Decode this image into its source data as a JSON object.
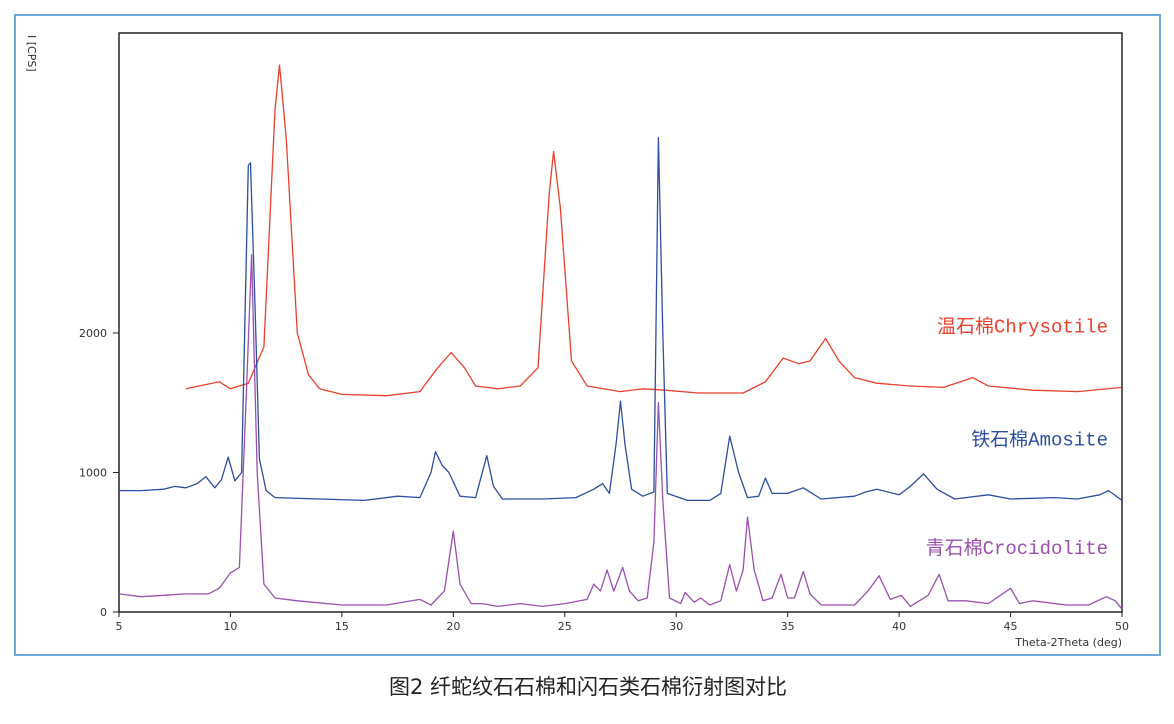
{
  "chart_data": {
    "type": "line",
    "caption": "图2   纤蛇纹石石棉和闪石类石棉衍射图对比",
    "x_label": "Theta-2Theta (deg)",
    "y_label": "I [CPS]",
    "xlim": [
      5,
      50
    ],
    "ylim": [
      0,
      4150
    ],
    "xticks": [
      5,
      10,
      15,
      20,
      25,
      30,
      35,
      40,
      45,
      50
    ],
    "yticks": [
      0,
      1000,
      2000
    ],
    "series": [
      {
        "name": "温石棉Chrysotile",
        "color": "#e8412c",
        "x": [
          8,
          9.5,
          10,
          10.8,
          11.5,
          12.0,
          12.2,
          12.5,
          13,
          13.5,
          14,
          15,
          17,
          18.5,
          19.3,
          19.9,
          20.5,
          21,
          22,
          23,
          23.8,
          24.3,
          24.5,
          24.8,
          25.3,
          26,
          27.5,
          28.5,
          29.5,
          31,
          33,
          34,
          34.8,
          35.5,
          36,
          36.7,
          37.3,
          38,
          39,
          40.5,
          42,
          43.3,
          44,
          46,
          48,
          50
        ],
        "values": [
          1600,
          1650,
          1600,
          1640,
          1900,
          3600,
          3920,
          3400,
          2000,
          1700,
          1600,
          1560,
          1550,
          1580,
          1750,
          1860,
          1750,
          1620,
          1600,
          1620,
          1750,
          3000,
          3300,
          2900,
          1800,
          1620,
          1580,
          1600,
          1590,
          1570,
          1570,
          1650,
          1820,
          1780,
          1800,
          1960,
          1800,
          1680,
          1640,
          1620,
          1610,
          1680,
          1620,
          1590,
          1580,
          1610
        ]
      },
      {
        "name": "铁石棉Amosite",
        "color": "#2c4fa0",
        "x": [
          5,
          6,
          7,
          7.5,
          8,
          8.5,
          8.9,
          9.3,
          9.6,
          9.9,
          10.2,
          10.5,
          10.8,
          10.9,
          11.1,
          11.3,
          11.6,
          12,
          14,
          16,
          17.5,
          18.5,
          19.0,
          19.2,
          19.5,
          19.8,
          20.3,
          21,
          21.5,
          21.8,
          22.2,
          24,
          25.5,
          26.3,
          26.7,
          27.0,
          27.3,
          27.5,
          27.7,
          28,
          28.5,
          29,
          29.2,
          29.4,
          29.6,
          30.5,
          31.5,
          32,
          32.4,
          32.8,
          33.2,
          33.7,
          34.0,
          34.3,
          35,
          35.7,
          36.5,
          38,
          38.5,
          39,
          40,
          40.5,
          41.1,
          41.7,
          42.5,
          44,
          45,
          47,
          48,
          49,
          49.4,
          50
        ],
        "values": [
          870,
          870,
          880,
          900,
          890,
          920,
          970,
          890,
          950,
          1110,
          940,
          1000,
          3200,
          3220,
          2200,
          1100,
          870,
          820,
          810,
          800,
          830,
          820,
          1000,
          1150,
          1050,
          1000,
          830,
          820,
          1120,
          900,
          810,
          810,
          820,
          880,
          920,
          850,
          1200,
          1510,
          1200,
          880,
          830,
          860,
          3400,
          2000,
          850,
          800,
          800,
          850,
          1260,
          1000,
          820,
          830,
          960,
          850,
          850,
          890,
          810,
          830,
          860,
          880,
          840,
          900,
          990,
          880,
          810,
          840,
          810,
          820,
          810,
          840,
          870,
          800
        ]
      },
      {
        "name": "青石棉Crocidolite",
        "color": "#9b4fae",
        "x": [
          5,
          6,
          7,
          8,
          9,
          9.5,
          10,
          10.4,
          10.7,
          10.95,
          11.2,
          11.5,
          12,
          13,
          15,
          17,
          18.5,
          19.0,
          19.6,
          20.0,
          20.3,
          20.8,
          21.3,
          22,
          23,
          24,
          25,
          26,
          26.3,
          26.6,
          26.9,
          27.2,
          27.6,
          27.9,
          28.3,
          28.7,
          29.0,
          29.2,
          29.4,
          29.7,
          30.2,
          30.4,
          30.8,
          31.1,
          31.5,
          32,
          32.4,
          32.7,
          33.0,
          33.2,
          33.5,
          33.9,
          34.3,
          34.7,
          35.0,
          35.3,
          35.7,
          36.0,
          36.5,
          38,
          38.6,
          39.1,
          39.6,
          40.1,
          40.5,
          41.3,
          41.8,
          42.2,
          43,
          44,
          45.0,
          45.4,
          46,
          47.5,
          48.5,
          49.3,
          49.7,
          50
        ],
        "values": [
          130,
          110,
          120,
          130,
          130,
          170,
          280,
          320,
          1500,
          2560,
          1000,
          200,
          100,
          80,
          50,
          50,
          90,
          50,
          150,
          580,
          200,
          60,
          60,
          40,
          60,
          40,
          60,
          90,
          200,
          150,
          300,
          150,
          320,
          150,
          80,
          100,
          500,
          1500,
          800,
          100,
          60,
          140,
          70,
          100,
          50,
          80,
          340,
          150,
          300,
          680,
          300,
          80,
          100,
          270,
          100,
          100,
          290,
          130,
          50,
          50,
          150,
          260,
          90,
          120,
          40,
          120,
          270,
          80,
          80,
          60,
          170,
          60,
          80,
          50,
          50,
          110,
          80,
          20
        ]
      }
    ]
  }
}
